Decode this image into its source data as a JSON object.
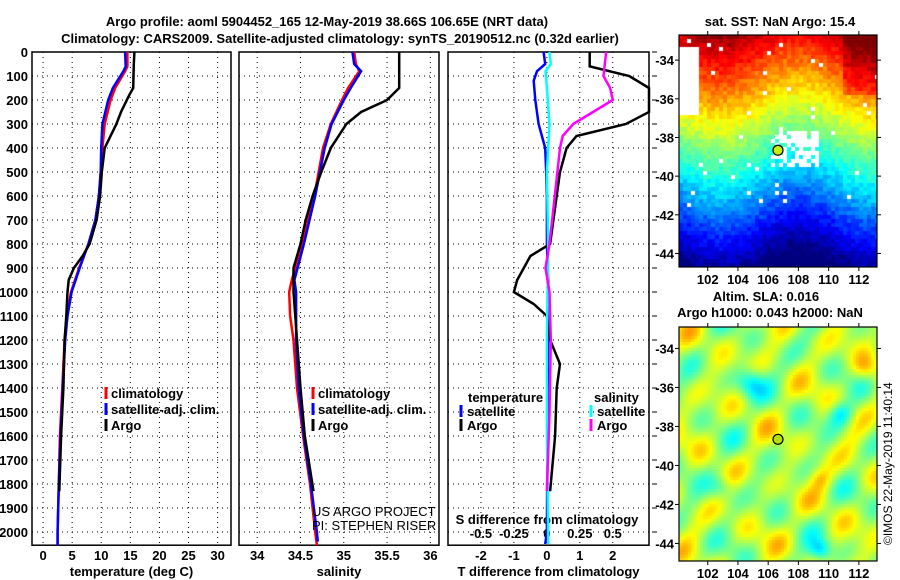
{
  "title_line1": "Argo profile: aoml 5904452_165 12-May-2019 38.66S 106.65E (NRT data)",
  "title_line2": "Climatology: CARS2009. Satellite-adjusted climatology: synTS_20190512.nc (0.32d earlier)",
  "colors": {
    "climatology": "#ff0000",
    "satellite": "#0000ff",
    "argo": "#000000",
    "sal_satellite": "#00ffff",
    "sal_argo": "#ff00ff"
  },
  "chart_data": [
    {
      "type": "line",
      "name": "temperature",
      "xlabel": "temperature (deg C)",
      "ylabel": "depth",
      "xlim": [
        -1.9,
        32.3
      ],
      "ylim": [
        2055,
        0
      ],
      "xticks": [
        "0",
        "5",
        "10",
        "15",
        "20",
        "25",
        "30"
      ],
      "xtick_values": [
        0,
        5,
        10,
        15,
        20,
        25,
        30
      ],
      "yticks": [
        "0",
        "100",
        "200",
        "300",
        "400",
        "500",
        "600",
        "700",
        "800",
        "900",
        "1000",
        "1100",
        "1200",
        "1300",
        "1400",
        "1500",
        "1600",
        "1700",
        "1800",
        "1900",
        "2000"
      ],
      "grid": true,
      "legend": [
        "climatology",
        "satellite-adj. clim.",
        "Argo"
      ],
      "legend_position": "lower-right",
      "series": [
        {
          "name": "climatology",
          "depth": [
            0,
            60,
            80,
            150,
            200,
            300,
            400,
            500,
            600,
            700,
            800,
            900,
            1000,
            1100,
            1200,
            1400,
            1600,
            1800,
            2000,
            2055
          ],
          "values": [
            14.5,
            14.5,
            14.1,
            12.4,
            11.6,
            10.6,
            10.2,
            9.9,
            9.6,
            9.0,
            7.8,
            6.2,
            4.8,
            4.1,
            3.7,
            3.3,
            2.9,
            2.7,
            2.5,
            2.5
          ]
        },
        {
          "name": "satellite-adj. clim.",
          "depth": [
            0,
            60,
            80,
            150,
            200,
            300,
            400,
            500,
            600,
            700,
            800,
            900,
            1000,
            1100,
            1200,
            1400,
            1600,
            1800,
            2000,
            2055
          ],
          "values": [
            14.1,
            14.2,
            13.8,
            12.0,
            11.2,
            10.2,
            10.0,
            9.9,
            9.6,
            9.0,
            7.8,
            6.3,
            4.9,
            4.2,
            3.8,
            3.4,
            3.0,
            2.7,
            2.5,
            2.5
          ]
        },
        {
          "name": "Argo",
          "depth": [
            0,
            50,
            150,
            180,
            250,
            300,
            400,
            500,
            600,
            700,
            800,
            850,
            900,
            950,
            1000,
            1100,
            1200,
            1400,
            1600,
            1830
          ],
          "values": [
            15.7,
            15.6,
            15.5,
            14.8,
            13.4,
            12.6,
            10.6,
            10.1,
            9.8,
            9.2,
            8.0,
            6.8,
            5.3,
            4.4,
            4.2,
            4.0,
            3.7,
            3.5,
            3.1,
            2.8
          ]
        }
      ]
    },
    {
      "type": "line",
      "name": "salinity",
      "xlabel": "salinity",
      "xlim": [
        33.79,
        36.1
      ],
      "ylim": [
        2055,
        0
      ],
      "xticks": [
        "34",
        "34.5",
        "35",
        "35.5",
        "36"
      ],
      "xtick_values": [
        34,
        34.5,
        35,
        35.5,
        36
      ],
      "grid": true,
      "legend": [
        "climatology",
        "satellite-adj. clim.",
        "Argo"
      ],
      "legend_position": "lower-right",
      "annotation": [
        "US ARGO PROJECT",
        "PI: STEPHEN RISER"
      ],
      "series": [
        {
          "name": "climatology",
          "depth": [
            0,
            50,
            80,
            150,
            200,
            300,
            400,
            600,
            800,
            950,
            1000,
            1100,
            1200,
            1400,
            1600,
            1800,
            2000,
            2055
          ],
          "values": [
            35.12,
            35.14,
            35.18,
            35.05,
            34.98,
            34.85,
            34.76,
            34.66,
            34.52,
            34.4,
            34.37,
            34.38,
            34.42,
            34.46,
            34.53,
            34.61,
            34.67,
            34.69
          ]
        },
        {
          "name": "satellite-adj. clim.",
          "depth": [
            0,
            50,
            80,
            150,
            200,
            300,
            400,
            600,
            800,
            950,
            1000,
            1100,
            1200,
            1400,
            1600,
            1800,
            2000,
            2040
          ],
          "values": [
            35.1,
            35.12,
            35.2,
            35.08,
            35.0,
            34.86,
            34.78,
            34.67,
            34.54,
            34.43,
            34.45,
            34.45,
            34.45,
            34.48,
            34.54,
            34.62,
            34.69,
            34.7
          ]
        },
        {
          "name": "Argo",
          "depth": [
            0,
            150,
            200,
            250,
            300,
            400,
            500,
            600,
            700,
            800,
            900,
            1000,
            1100,
            1200,
            1400,
            1600,
            1830
          ],
          "values": [
            35.64,
            35.64,
            35.5,
            35.2,
            35.03,
            34.85,
            34.74,
            34.64,
            34.56,
            34.5,
            34.42,
            34.42,
            34.44,
            34.46,
            34.5,
            34.55,
            34.65
          ]
        }
      ]
    },
    {
      "type": "line",
      "name": "differences",
      "xlabel": "T difference from climatology",
      "x2label": "S difference from climatology",
      "xlim": [
        -3.0,
        3.1
      ],
      "ylim": [
        2055,
        0
      ],
      "xticks": [
        "-2",
        "-1",
        "0",
        "1",
        "2"
      ],
      "xtick_values": [
        -2,
        -1,
        0,
        1,
        2
      ],
      "x2ticks": [
        "-0.5",
        "-0.25",
        "0",
        "0.25",
        "0.5"
      ],
      "x2tick_values": [
        -0.5,
        -0.25,
        0,
        0.25,
        0.5
      ],
      "grid": true,
      "legend_temperature": {
        "title": "temperature",
        "items": [
          "satellite",
          "Argo"
        ]
      },
      "legend_salinity": {
        "title": "salinity",
        "items": [
          "satellite",
          "Argo"
        ]
      },
      "series": [
        {
          "name": "temperature satellite",
          "axis": "T",
          "depth": [
            0,
            50,
            80,
            120,
            200,
            300,
            400,
            500,
            600,
            800,
            1000,
            1500,
            2000,
            2050
          ],
          "values": [
            -0.1,
            -0.05,
            -0.3,
            -0.4,
            -0.35,
            -0.25,
            -0.05,
            -0.02,
            0,
            0,
            0.05,
            0.02,
            0,
            -0.05
          ]
        },
        {
          "name": "temperature Argo",
          "axis": "T",
          "depth": [
            0,
            60,
            100,
            150,
            200,
            250,
            300,
            350,
            400,
            500,
            700,
            800,
            850,
            900,
            950,
            1000,
            1050,
            1100,
            1200,
            1300,
            1400,
            1600,
            1830
          ],
          "values": [
            1.3,
            1.3,
            2.5,
            3.1,
            3.1,
            3.1,
            2.4,
            0.9,
            0.6,
            0.4,
            0.2,
            0.1,
            -0.5,
            -0.7,
            -0.9,
            -1.0,
            -0.4,
            0.0,
            0.1,
            0.4,
            0.3,
            0.25,
            0.1
          ]
        },
        {
          "name": "salinity satellite",
          "axis": "S",
          "depth": [
            0,
            50,
            80,
            150,
            300,
            500,
            800,
            1200,
            1600,
            2000,
            2050
          ],
          "values": [
            0.02,
            0.03,
            -0.01,
            0.0,
            0.02,
            0.0,
            0.01,
            0.0,
            0.0,
            0.01,
            0.01
          ]
        },
        {
          "name": "salinity Argo",
          "axis": "S",
          "depth": [
            0,
            50,
            100,
            150,
            200,
            250,
            300,
            350,
            400,
            500,
            800,
            900,
            1000,
            1200,
            1500,
            1830
          ],
          "values": [
            0.45,
            0.44,
            0.43,
            0.48,
            0.5,
            0.35,
            0.2,
            0.12,
            0.1,
            0.08,
            0.02,
            -0.01,
            0.02,
            0.03,
            0.02,
            0.0
          ]
        }
      ]
    }
  ],
  "maps": [
    {
      "title": "sat. SST: NaN Argo: 15.4",
      "lon_ticks": [
        "102",
        "104",
        "106",
        "108",
        "110",
        "112"
      ],
      "lon_values": [
        102,
        104,
        106,
        108,
        110,
        112
      ],
      "lat_ticks": [
        "-34",
        "-36",
        "-38",
        "-40",
        "-42",
        "-44"
      ],
      "lat_values": [
        -34,
        -36,
        -38,
        -40,
        -42,
        -44
      ],
      "lon_range": [
        100.1,
        113.2
      ],
      "lat_range": [
        -32.7,
        -44.7
      ],
      "argo_position": [
        106.65,
        -38.66
      ]
    },
    {
      "title_line1": "Altim. SLA: 0.016",
      "title_line2": "Argo h1000: 0.043 h2000: NaN",
      "lat_ticks": [
        "-34",
        "-36",
        "-38",
        "-40",
        "-42",
        "-44"
      ],
      "lat_values": [
        -34,
        -36,
        -38,
        -40,
        -42,
        -44
      ],
      "lon_ticks": [
        "102",
        "104",
        "106",
        "108",
        "110",
        "112"
      ],
      "lon_values": [
        102,
        104,
        106,
        108,
        110,
        112
      ],
      "lon_range": [
        100.1,
        113.2
      ],
      "lat_range": [
        -32.9,
        -44.9
      ],
      "argo_position": [
        106.65,
        -38.66
      ]
    }
  ],
  "credit": "©IMOS 22-May-2019 11:40:14"
}
